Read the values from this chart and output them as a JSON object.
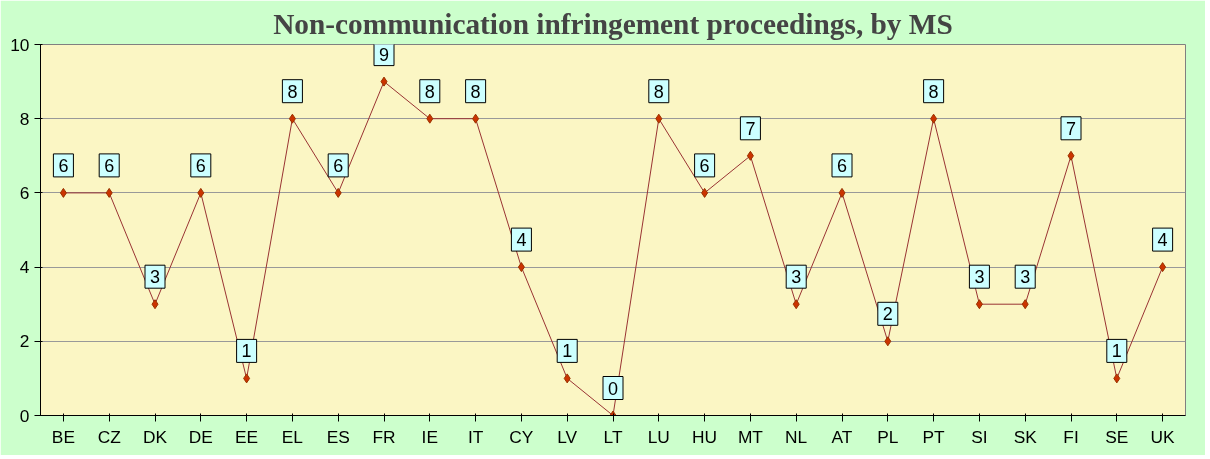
{
  "chart_data": {
    "type": "line",
    "title": "Non-communication infringement proceedings, by MS",
    "categories": [
      "BE",
      "CZ",
      "DK",
      "DE",
      "EE",
      "EL",
      "ES",
      "FR",
      "IE",
      "IT",
      "CY",
      "LV",
      "LT",
      "LU",
      "HU",
      "MT",
      "NL",
      "AT",
      "PL",
      "PT",
      "SI",
      "SK",
      "FI",
      "SE",
      "UK"
    ],
    "series": [
      {
        "color": "#993333",
        "values": [
          6,
          6,
          3,
          6,
          1,
          8,
          6,
          9,
          8,
          8,
          4,
          1,
          0,
          8,
          6,
          7,
          3,
          6,
          2,
          8,
          3,
          3,
          7,
          1,
          4
        ]
      }
    ],
    "ylim": [
      0,
      10
    ],
    "yticks": [
      0,
      2,
      4,
      6,
      8,
      10
    ],
    "grid": "y",
    "marker": "diamond",
    "line_style": "solid",
    "data_labels": true
  }
}
